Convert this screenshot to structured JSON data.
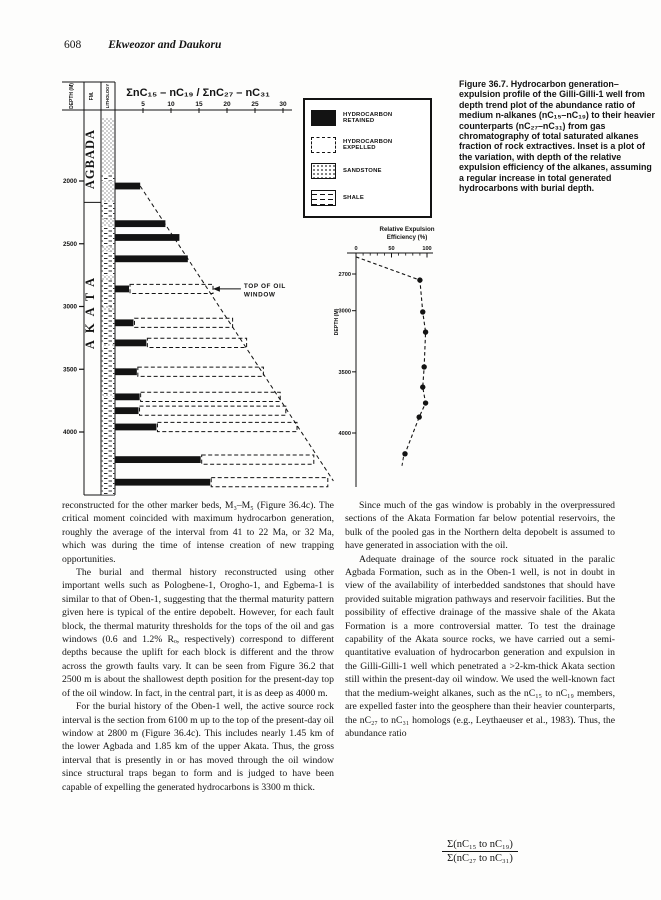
{
  "page": {
    "folio": "608",
    "running_head": "Ekweozor and Daukoru"
  },
  "figure": {
    "caption": "Figure 36.7. Hydrocarbon generation–expulsion profile of the Gilli-Gilli-1 well from depth trend plot of the abundance ratio of medium n-alkanes (nC₁₅–nC₁₉) to their heavier counterparts (nC₂₇–nC₃₁) from gas chromatography of total saturated alkanes fraction of rock extractives. Inset is a plot of the variation, with depth of the relative expulsion efficiency of the alkanes, assuming a regular increase in total generated hydrocarbons with burial depth.",
    "legend": [
      {
        "label": "HYDROCARBON RETAINED",
        "swatch": "solid-black"
      },
      {
        "label": "HYDROCARBON EXPELLED",
        "swatch": "dashed-outline"
      },
      {
        "label": "SANDSTONE",
        "swatch": "dotted-pattern"
      },
      {
        "label": "SHALE",
        "swatch": "dashed-line-pattern"
      }
    ]
  },
  "chart_data": [
    {
      "id": "generation-expulsion-profile",
      "type": "bar",
      "title": "ΣnC₁₅ – nC₁₉ / ΣnC₂₇ – nC₃₁",
      "x_ticks": [
        5,
        10,
        15,
        20,
        25,
        30
      ],
      "x_range": [
        0,
        31
      ],
      "column_headers": [
        "DEPTH (M)",
        "FM.",
        "LITHOLOGY"
      ],
      "depth_ticks": [
        2000,
        2500,
        3000,
        3500,
        4000
      ],
      "depth_range": [
        1450,
        4500
      ],
      "formations": [
        {
          "name": "AGBADA",
          "top": 1480,
          "base": 2170
        },
        {
          "name": "AKATA",
          "top": 2170,
          "base": 4500
        }
      ],
      "lithology": [
        {
          "type": "sandstone",
          "from": 1500,
          "to": 1950
        },
        {
          "type": "shale",
          "from": 1950,
          "to": 2000
        },
        {
          "type": "sandstone",
          "from": 2000,
          "to": 2170
        },
        {
          "type": "shale",
          "from": 2170,
          "to": 2300
        },
        {
          "type": "sandstone",
          "from": 2300,
          "to": 2360
        },
        {
          "type": "shale",
          "from": 2360,
          "to": 2520
        },
        {
          "type": "sandstone",
          "from": 2520,
          "to": 2560
        },
        {
          "type": "shale",
          "from": 2560,
          "to": 2750
        },
        {
          "type": "sandstone",
          "from": 2750,
          "to": 2790
        },
        {
          "type": "shale",
          "from": 2790,
          "to": 3000
        },
        {
          "type": "sandstone",
          "from": 3000,
          "to": 3030
        },
        {
          "type": "shale",
          "from": 3030,
          "to": 3300
        },
        {
          "type": "sandstone",
          "from": 3300,
          "to": 3320
        },
        {
          "type": "shale",
          "from": 3320,
          "to": 3700
        },
        {
          "type": "sandstone",
          "from": 3700,
          "to": 3720
        },
        {
          "type": "shale",
          "from": 3720,
          "to": 4500
        }
      ],
      "bars": [
        {
          "depth": 2040,
          "retained": 4.5,
          "expelled_to": null
        },
        {
          "depth": 2340,
          "retained": 9.0,
          "expelled_to": null
        },
        {
          "depth": 2450,
          "retained": 11.5,
          "expelled_to": null
        },
        {
          "depth": 2620,
          "retained": 13.0,
          "expelled_to": null
        },
        {
          "depth": 2860,
          "retained": 2.5,
          "expelled_to": 17.5
        },
        {
          "depth": 3130,
          "retained": 3.3,
          "expelled_to": 21.0
        },
        {
          "depth": 3290,
          "retained": 5.6,
          "expelled_to": 23.5
        },
        {
          "depth": 3520,
          "retained": 3.9,
          "expelled_to": 26.5
        },
        {
          "depth": 3720,
          "retained": 4.4,
          "expelled_to": 29.5
        },
        {
          "depth": 3830,
          "retained": 4.2,
          "expelled_to": 30.5
        },
        {
          "depth": 3960,
          "retained": 7.4,
          "expelled_to": 32.5
        },
        {
          "depth": 4220,
          "retained": 15.3,
          "expelled_to": 35.5
        },
        {
          "depth": 4400,
          "retained": 17.0,
          "expelled_to": 38.0
        }
      ],
      "total_generated_line": {
        "from_value": 4.5,
        "from_depth": 2040,
        "to_value": 39,
        "to_depth": 4390
      },
      "annotation": {
        "text_line1": "TOP OF OIL",
        "text_line2": "WINDOW",
        "depth": 2860,
        "value": 18.2
      }
    },
    {
      "id": "relative-expulsion-efficiency-inset",
      "type": "line",
      "title_line1": "Relative Expulsion",
      "title_line2": "Efficiency (%)",
      "x_ticks": [
        0,
        50,
        100
      ],
      "x_range": [
        0,
        105
      ],
      "ylabel": "DEPTH (M)",
      "depth_ticks": [
        2700,
        3000,
        3500,
        4000
      ],
      "depth_range": [
        2540,
        4450
      ],
      "points": [
        {
          "efficiency": 0,
          "depth": 2560
        },
        {
          "efficiency": 90,
          "depth": 2750
        },
        {
          "efficiency": 94,
          "depth": 3010
        },
        {
          "efficiency": 98,
          "depth": 3175
        },
        {
          "efficiency": 96,
          "depth": 3460
        },
        {
          "efficiency": 94,
          "depth": 3625
        },
        {
          "efficiency": 98,
          "depth": 3755
        },
        {
          "efficiency": 89,
          "depth": 3870
        },
        {
          "efficiency": 69,
          "depth": 4170
        }
      ]
    }
  ],
  "body": {
    "left": [
      {
        "text": "reconstructed for the other marker beds, M₃–M₅ (Figure 36.4c). The critical moment coincided with maximum hydrocarbon generation, roughly the average of the interval from 41 to 22 Ma, or 32 Ma, which was during the time of intense creation of new trapping opportunities."
      },
      {
        "text": "The burial and thermal history reconstructed using other important wells such as Pologbene-1, Orogho-1, and Egbema-1 is similar to that of Oben-1, suggesting that the thermal maturity pattern given here is typical of the entire depobelt. However, for each fault block, the thermal maturity thresholds for the tops of the oil and gas windows (0.6 and 1.2% Rₒ, respectively) correspond to different depths because the uplift for each block is different and the throw across the growth faults vary. It can be seen from Figure 36.2 that 2500 m is about the shallowest depth position for the present-day top of the oil window. In fact, in the central part, it is as deep as 4000 m."
      },
      {
        "text": "For the burial history of the Oben-1 well, the active source rock interval is the section from 6100 m up to the top of the present-day oil window at 2800 m (Figure 36.4c). This includes nearly 1.45 km of the lower Agbada and 1.85 km of the upper Akata. Thus, the gross interval that is presently in or has moved through the oil window since structural traps began to form and is judged to have been capable of expelling the generated hydrocarbons is 3300 m thick."
      }
    ],
    "right": [
      {
        "text": "Since much of the gas window is probably in the overpressured sections of the Akata Formation far below potential reservoirs, the bulk of the pooled gas in the Northern delta depobelt is assumed to have generated in association with the oil."
      },
      {
        "text": "Adequate drainage of the source rock situated in the paralic Agbada Formation, such as in the Oben-1 well, is not in doubt in view of the availability of interbedded sandstones that should have provided suitable migration pathways and reservoir facilities. But the possibility of effective drainage of the massive shale of the Akata Formation is a more controversial matter. To test the drainage capability of the Akata source rocks, we have carried out a semi-quantitative evaluation of hydrocarbon generation and expulsion in the Gilli-Gilli-1 well which penetrated a >2-km-thick Akata section still within the present-day oil window. We used the well-known fact that the medium-weight alkanes, such as the nC₁₅ to nC₁₉ members, are expelled faster into the geosphere than their heavier counterparts, the nC₂₇ to nC₃₁ homologs (e.g., Leythaeuser et al., 1983). Thus, the abundance ratio"
      }
    ]
  },
  "formula": {
    "numerator": "Σ(nC₁₅ to nC₁₉)",
    "denominator": "Σ(nC₂₇ to nC₃₁)"
  }
}
